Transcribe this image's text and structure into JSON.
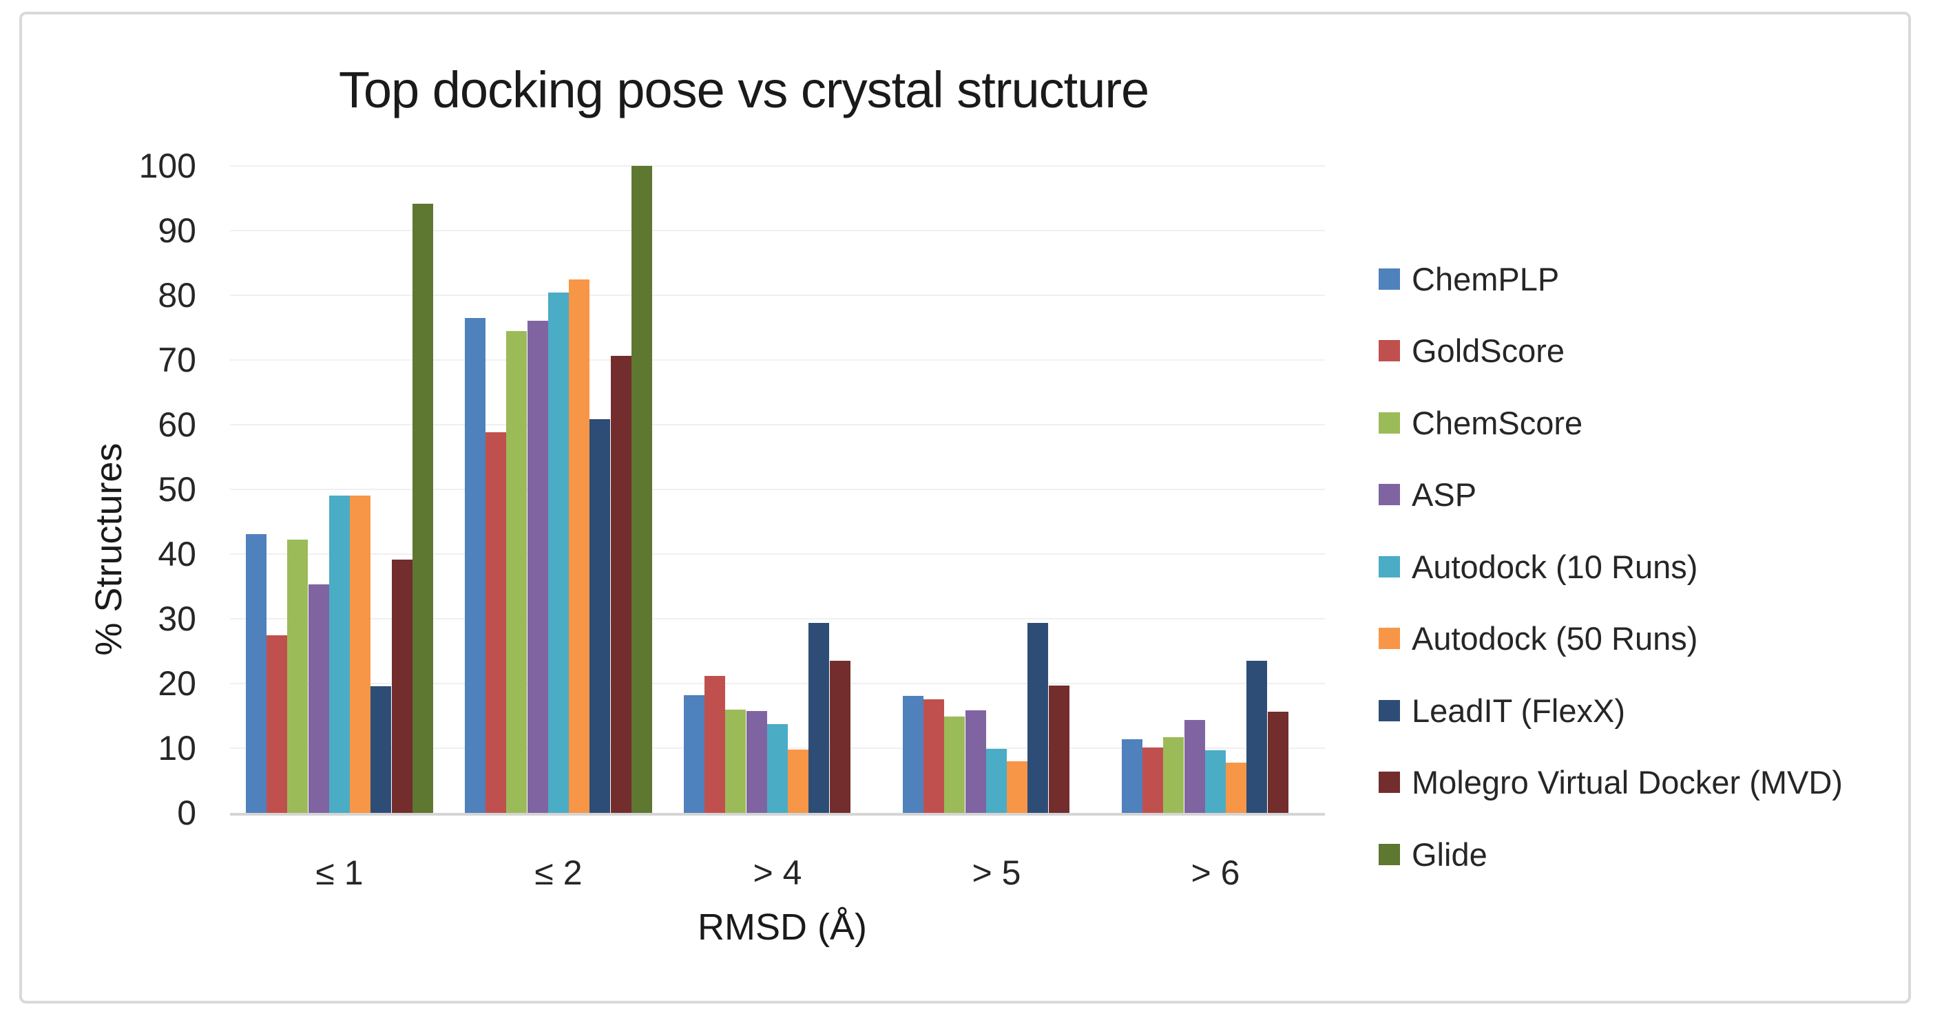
{
  "chart_data": {
    "type": "bar",
    "title": "Top docking pose vs crystal structure",
    "xlabel": "RMSD (Å)",
    "ylabel": "% Structures",
    "ylim": [
      0,
      100
    ],
    "yticks": [
      0,
      10,
      20,
      30,
      40,
      50,
      60,
      70,
      80,
      90,
      100
    ],
    "grid": true,
    "legend_position": "right",
    "categories": [
      "≤ 1",
      "≤ 2",
      "> 4",
      "> 5",
      "> 6"
    ],
    "series": [
      {
        "name": "ChemPLP",
        "color": "#4F81BD",
        "values": [
          43.1,
          76.5,
          18.2,
          18.1,
          11.4
        ]
      },
      {
        "name": "GoldScore",
        "color": "#C0504D",
        "values": [
          27.5,
          58.8,
          21.2,
          17.6,
          10.1
        ]
      },
      {
        "name": "ChemScore",
        "color": "#9BBB59",
        "values": [
          42.2,
          74.5,
          16.0,
          14.9,
          11.7
        ]
      },
      {
        "name": "ASP",
        "color": "#8064A2",
        "values": [
          35.3,
          76.1,
          15.7,
          15.8,
          14.4
        ]
      },
      {
        "name": "Autodock (10 Runs)",
        "color": "#4BACC6",
        "values": [
          49.0,
          80.4,
          13.7,
          9.9,
          9.7
        ]
      },
      {
        "name": "Autodock (50 Runs)",
        "color": "#F79646",
        "values": [
          49.0,
          82.4,
          9.8,
          8.0,
          7.8
        ]
      },
      {
        "name": "LeadIT (FlexX)",
        "color": "#2D4D76",
        "values": [
          19.6,
          60.8,
          29.4,
          29.4,
          23.5
        ]
      },
      {
        "name": "Molegro Virtual Docker (MVD)",
        "color": "#732D2D",
        "values": [
          39.2,
          70.6,
          23.5,
          19.7,
          15.6
        ]
      },
      {
        "name": "Glide",
        "color": "#5E7731",
        "values": [
          94.1,
          100,
          0,
          0,
          0
        ]
      }
    ]
  },
  "colors": {
    "background": "#FFFFFF",
    "border": "#D9D9D9",
    "gridline": "#F0F0F0",
    "axis_line": "#D5D5D5",
    "text": "#262626"
  }
}
